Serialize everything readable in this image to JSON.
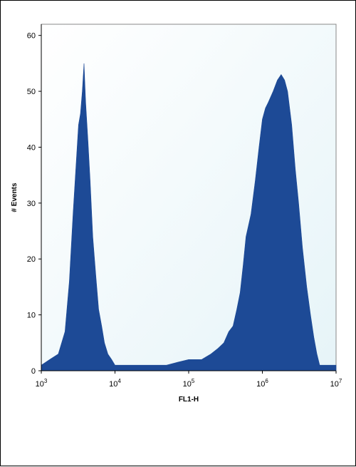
{
  "chart_data": {
    "type": "area",
    "title": "",
    "xlabel": "FL1-H",
    "ylabel": "# Events",
    "x_scale": "log",
    "xlim": [
      1000,
      10000000
    ],
    "ylim": [
      0,
      62
    ],
    "x_ticks": [
      {
        "value": 1000,
        "base": "10",
        "exp": "3"
      },
      {
        "value": 10000,
        "base": "10",
        "exp": "4"
      },
      {
        "value": 100000,
        "base": "10",
        "exp": "5"
      },
      {
        "value": 1000000,
        "base": "10",
        "exp": "6"
      },
      {
        "value": 10000000,
        "base": "10",
        "exp": "7"
      }
    ],
    "y_ticks": [
      0,
      10,
      20,
      30,
      40,
      50,
      60
    ],
    "grid": false,
    "background_color": "#e6f4f8",
    "fill_color": "#1d4a96",
    "series": [
      {
        "x": [
          1000,
          1300,
          1700,
          2100,
          2400,
          2700,
          3000,
          3200,
          3400,
          3600,
          3800,
          4000,
          4300,
          4600,
          5000,
          5500,
          6000,
          6600,
          7200,
          8000,
          9000,
          10000,
          13000,
          18000,
          25000,
          35000,
          50000,
          70000,
          100000,
          150000,
          200000,
          250000,
          300000,
          350000,
          400000,
          450000,
          500000,
          550000,
          600000,
          700000,
          800000,
          900000,
          1000000,
          1100000,
          1200000,
          1400000,
          1600000,
          1800000,
          2000000,
          2200000,
          2500000,
          2800000,
          3100000,
          3500000,
          4000000,
          4500000,
          5000000,
          5500000,
          6000000,
          7000000,
          8000000,
          10000000
        ],
        "y": [
          1,
          2,
          3,
          7,
          16,
          28,
          38,
          44,
          46,
          50,
          55,
          48,
          41,
          34,
          24,
          17,
          11,
          8,
          5,
          3,
          2,
          1,
          1,
          1,
          1,
          1,
          1,
          1.5,
          2,
          2,
          3,
          4,
          5,
          7,
          8,
          11,
          14,
          19,
          24,
          28,
          34,
          40,
          45,
          47,
          48,
          50,
          52,
          53,
          52,
          50,
          44,
          36,
          30,
          22,
          15,
          10,
          6,
          3,
          1,
          1,
          1,
          1
        ]
      }
    ]
  }
}
